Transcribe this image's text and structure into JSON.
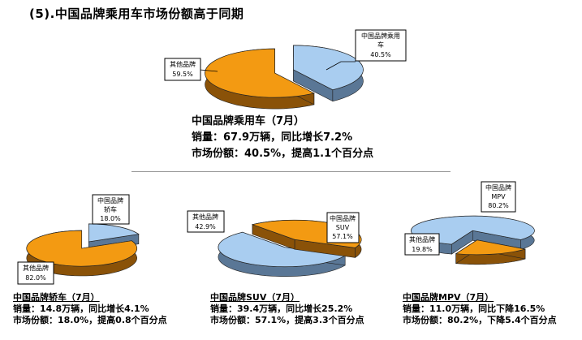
{
  "page": {
    "title": "(5).中国品牌乘用车市场份额高于同期"
  },
  "colors": {
    "china_brand": "#a9cdf0",
    "china_brand_side": "#5a7796",
    "other_brand": "#f39a12",
    "other_brand_side": "#8a5208"
  },
  "chart_data": [
    {
      "type": "pie",
      "categories": [
        "中国品牌乘用车",
        "其他品牌"
      ],
      "values": [
        40.5,
        59.5
      ],
      "labels": [
        "中国品牌乘用车 40.5%",
        "其他品牌 59.5%"
      ]
    },
    {
      "type": "pie",
      "categories": [
        "中国品牌轿车",
        "其他品牌"
      ],
      "values": [
        18.0,
        82.0
      ],
      "labels": [
        "中国品牌轿车 18.0%",
        "其他品牌 82.0%"
      ]
    },
    {
      "type": "pie",
      "categories": [
        "中国品牌SUV",
        "其他品牌"
      ],
      "values": [
        57.1,
        42.9
      ],
      "labels": [
        "中国品牌SUV 57.1%",
        "其他品牌 42.9%"
      ]
    },
    {
      "type": "pie",
      "categories": [
        "中国品牌MPV",
        "其他品牌"
      ],
      "values": [
        80.2,
        19.8
      ],
      "labels": [
        "中国品牌MPV 80.2%",
        "其他品牌 19.8%"
      ]
    }
  ],
  "pie_labels": {
    "main": {
      "china_line1": "中国品牌乘用",
      "china_line2": "车",
      "china_value": "40.5%",
      "other_line1": "其他品牌",
      "other_value": "59.5%"
    },
    "sedan": {
      "china_line1": "中国品牌",
      "china_line2": "轿车",
      "china_value": "18.0%",
      "other_line1": "其他品牌",
      "other_value": "82.0%"
    },
    "suv": {
      "china_line1": "中国品牌",
      "china_line2": "SUV",
      "china_value": "57.1%",
      "other_line1": "其他品牌",
      "other_value": "42.9%"
    },
    "mpv": {
      "china_line1": "中国品牌",
      "china_line2": "MPV",
      "china_value": "80.2%",
      "other_line1": "其他品牌",
      "other_value": "19.8%"
    }
  },
  "main_info": {
    "heading": "中国品牌乘用车（7月）",
    "sales": "销量：67.9万辆，同比增长7.2%",
    "share": "市场份额：40.5%，提高1.1个百分点"
  },
  "sedan_info": {
    "heading": "中国品牌轿车（7月）",
    "sales": "销量：14.8万辆，同比增长4.1%",
    "share": "市场份额：18.0%，提高0.8个百分点"
  },
  "suv_info": {
    "heading": "中国品牌SUV（7月）",
    "sales": "销量：39.4万辆，同比增长25.2%",
    "share": "市场份额：57.1%，提高3.3个百分点"
  },
  "mpv_info": {
    "heading": "中国品牌MPV（7月）",
    "sales": "销量：11.0万辆，同比下降16.5%",
    "share": "市场份额：80.2%，下降5.4个百分点"
  }
}
